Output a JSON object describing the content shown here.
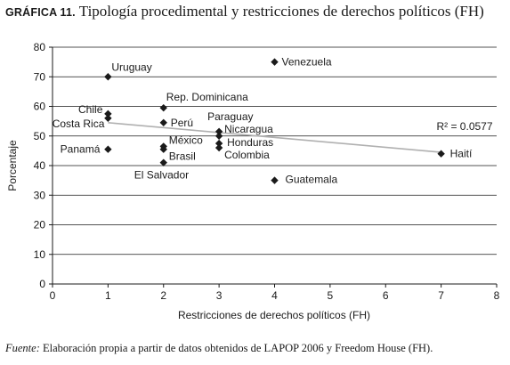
{
  "figure": {
    "label": "GRÁFICA 11.",
    "title": "Tipología procedimental y restricciones de derechos políticos (FH)"
  },
  "source": {
    "label": "Fuente:",
    "text": "Elaboración propia a partir de datos obtenidos de LAPOP 2006 y Freedom House (FH)."
  },
  "chart_data": {
    "type": "scatter",
    "title": "Tipología procedimental y restricciones de derechos políticos (FH)",
    "xlabel": "Restricciones de derechos políticos (FH)",
    "ylabel": "Porcentaje",
    "xlim": [
      0,
      8
    ],
    "ylim": [
      0,
      80
    ],
    "xticks": [
      0,
      1,
      2,
      3,
      4,
      5,
      6,
      7,
      8
    ],
    "yticks": [
      0,
      10,
      20,
      30,
      40,
      50,
      60,
      70,
      80
    ],
    "grid": "horizontal",
    "marker_color": "#1a1a1a",
    "trendline_color": "#b0b0b0",
    "points": [
      {
        "label": "Uruguay",
        "x": 1,
        "y": 70
      },
      {
        "label": "Chile",
        "x": 1,
        "y": 57.5
      },
      {
        "label": "Costa Rica",
        "x": 1,
        "y": 56
      },
      {
        "label": "Panamá",
        "x": 1,
        "y": 45.5
      },
      {
        "label": "Rep. Dominicana",
        "x": 2,
        "y": 59.5
      },
      {
        "label": "Perú",
        "x": 2,
        "y": 54.5
      },
      {
        "label": "México",
        "x": 2,
        "y": 46.5
      },
      {
        "label": "Brasil",
        "x": 2,
        "y": 45.5
      },
      {
        "label": "El Salvador",
        "x": 2,
        "y": 41
      },
      {
        "label": "Paraguay",
        "x": 3,
        "y": 51.5
      },
      {
        "label": "Nicaragua",
        "x": 3,
        "y": 50
      },
      {
        "label": "Honduras",
        "x": 3,
        "y": 47.5
      },
      {
        "label": "Colombia",
        "x": 3,
        "y": 46
      },
      {
        "label": "Venezuela",
        "x": 4,
        "y": 75
      },
      {
        "label": "Guatemala",
        "x": 4,
        "y": 35
      },
      {
        "label": "Haití",
        "x": 7,
        "y": 44
      }
    ],
    "trendline": {
      "x": [
        1,
        7
      ],
      "y": [
        54.5,
        44.5
      ],
      "r2_label": "R² = 0.0577"
    }
  }
}
